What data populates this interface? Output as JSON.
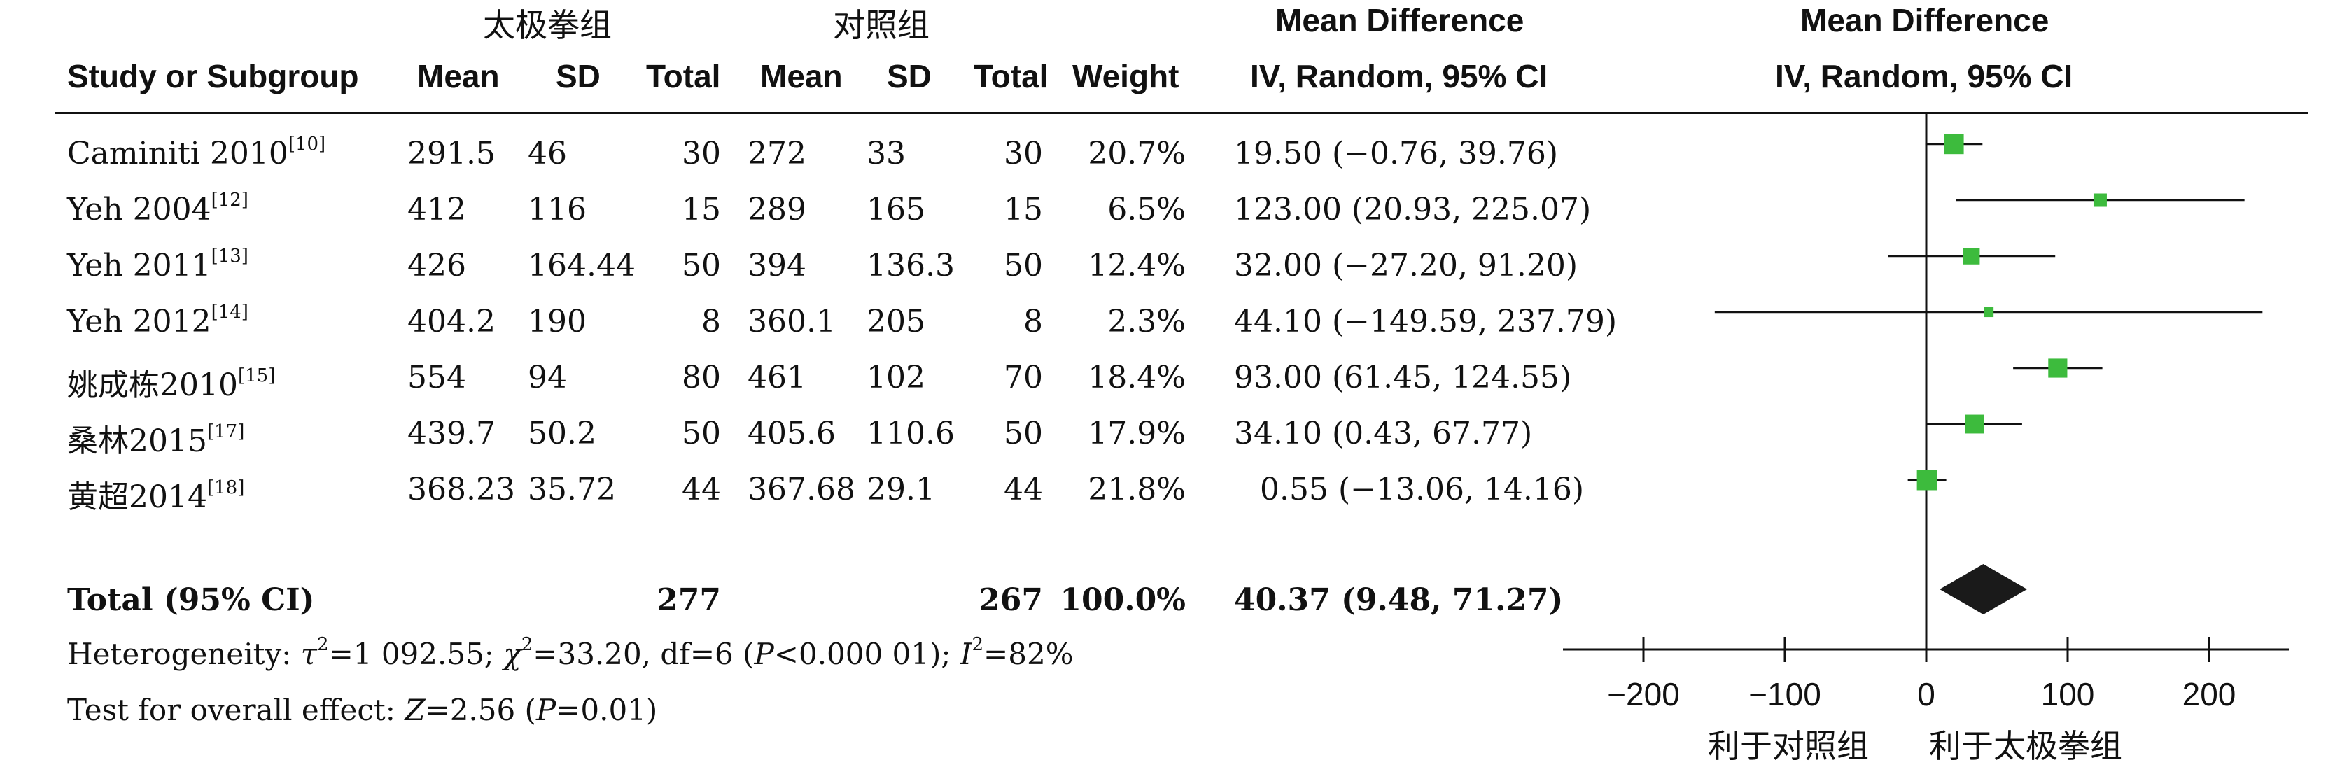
{
  "header": {
    "group_treatment": "太极拳组",
    "group_control": "对照组",
    "col_study": "Study or Subgroup",
    "col_mean_t": "Mean",
    "col_sd_t": "SD",
    "col_total_t": "Total",
    "col_mean_c": "Mean",
    "col_sd_c": "SD",
    "col_total_c": "Total",
    "col_weight": "Weight",
    "md_title": "Mean Difference",
    "md_method": "IV, Random, 95% CI",
    "plot_title": "Mean Difference",
    "plot_method": "IV, Random, 95% CI"
  },
  "studies": [
    {
      "name": "Caminiti 2010",
      "ref": "[10]",
      "mean_t": "291.5",
      "sd_t": "46",
      "total_t": "30",
      "mean_c": "272",
      "sd_c": "33",
      "total_c": "30",
      "weight": "20.7%",
      "ci": "19.50 (−0.76, 39.76)"
    },
    {
      "name": "Yeh 2004",
      "ref": "[12]",
      "mean_t": "412",
      "sd_t": "116",
      "total_t": "15",
      "mean_c": "289",
      "sd_c": "165",
      "total_c": "15",
      "weight": "6.5%",
      "ci": "123.00 (20.93, 225.07)"
    },
    {
      "name": "Yeh 2011",
      "ref": "[13]",
      "mean_t": "426",
      "sd_t": "164.44",
      "total_t": "50",
      "mean_c": "394",
      "sd_c": "136.3",
      "total_c": "50",
      "weight": "12.4%",
      "ci": "32.00 (−27.20, 91.20)"
    },
    {
      "name": "Yeh 2012",
      "ref": "[14]",
      "mean_t": "404.2",
      "sd_t": "190",
      "total_t": "8",
      "mean_c": "360.1",
      "sd_c": "205",
      "total_c": "8",
      "weight": "2.3%",
      "ci": "44.10 (−149.59, 237.79)"
    },
    {
      "name": "姚成栋2010",
      "ref": "[15]",
      "mean_t": "554",
      "sd_t": "94",
      "total_t": "80",
      "mean_c": "461",
      "sd_c": "102",
      "total_c": "70",
      "weight": "18.4%",
      "ci": "93.00 (61.45, 124.55)"
    },
    {
      "name": "桑林2015",
      "ref": "[17]",
      "mean_t": "439.7",
      "sd_t": "50.2",
      "total_t": "50",
      "mean_c": "405.6",
      "sd_c": "110.6",
      "total_c": "50",
      "weight": "17.9%",
      "ci": "34.10 (0.43, 67.77)"
    },
    {
      "name": "黄超2014",
      "ref": "[18]",
      "mean_t": "368.23",
      "sd_t": "35.72",
      "total_t": "44",
      "mean_c": "367.68",
      "sd_c": "29.1",
      "total_c": "44",
      "weight": "21.8%",
      "ci": "0.55 (−13.06, 14.16)"
    }
  ],
  "total": {
    "label": "Total (95% CI)",
    "total_t": "277",
    "total_c": "267",
    "weight": "100.0%",
    "ci": "40.37 (9.48, 71.27)"
  },
  "footer": {
    "het_prefix": "Heterogeneity: ",
    "het_tau": "τ",
    "het_tau_sup": "2",
    "het_tau_val": "=1 092.55; ",
    "het_chi": "χ",
    "het_chi_sup": "2",
    "het_chi_val": "=33.20, df=6 (",
    "het_p": "P",
    "het_p_val": "<0.000 01); ",
    "het_i": "I",
    "het_i_sup": "2",
    "het_i_val": "=82%",
    "overall_prefix": "Test for overall effect: ",
    "overall_z": "Z",
    "overall_z_val": "=2.56 (",
    "overall_p": "P",
    "overall_p_val": "=0.01)"
  },
  "axis": {
    "favours_control": "利于对照组",
    "favours_treatment": "利于太极拳组"
  },
  "colors": {
    "box": "#3dbb3d",
    "diamond": "#1a1a1a",
    "line": "#111111"
  },
  "chart_data": {
    "type": "forest",
    "xlim": [
      -250,
      260
    ],
    "xticks": [
      -200,
      -100,
      0,
      100,
      200
    ],
    "tick_labels": [
      "−200",
      "−100",
      "0",
      "100",
      "200"
    ],
    "reference_line": 0,
    "studies": [
      {
        "name": "Caminiti 2010",
        "md": 19.5,
        "lo": -0.76,
        "hi": 39.76,
        "weight": 20.7
      },
      {
        "name": "Yeh 2004",
        "md": 123.0,
        "lo": 20.93,
        "hi": 225.07,
        "weight": 6.5
      },
      {
        "name": "Yeh 2011",
        "md": 32.0,
        "lo": -27.2,
        "hi": 91.2,
        "weight": 12.4
      },
      {
        "name": "Yeh 2012",
        "md": 44.1,
        "lo": -149.59,
        "hi": 237.79,
        "weight": 2.3
      },
      {
        "name": "姚成栋2010",
        "md": 93.0,
        "lo": 61.45,
        "hi": 124.55,
        "weight": 18.4
      },
      {
        "name": "桑林2015",
        "md": 34.1,
        "lo": 0.43,
        "hi": 67.77,
        "weight": 17.9
      },
      {
        "name": "黄超2014",
        "md": 0.55,
        "lo": -13.06,
        "hi": 14.16,
        "weight": 21.8
      }
    ],
    "pooled": {
      "md": 40.37,
      "lo": 9.48,
      "hi": 71.27
    }
  }
}
